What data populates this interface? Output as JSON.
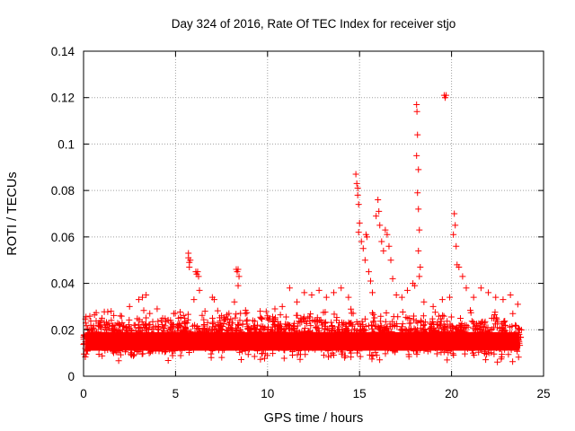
{
  "chart_data": {
    "type": "scatter",
    "title": "Day 324 of 2016, Rate Of TEC Index for receiver stjo",
    "xlabel": "GPS time / hours",
    "ylabel": "ROTI / TECUs",
    "xlim": [
      0,
      25
    ],
    "ylim": [
      0,
      0.14
    ],
    "x_ticks": [
      0,
      5,
      10,
      15,
      20,
      25
    ],
    "x_tick_labels": [
      "0",
      "5",
      "10",
      "15",
      "20",
      "25"
    ],
    "y_ticks": [
      0,
      0.02,
      0.04,
      0.06,
      0.08,
      0.1,
      0.12,
      0.14
    ],
    "y_tick_labels": [
      "0",
      "0.02",
      "0.04",
      "0.06",
      "0.08",
      "0.1",
      "0.12",
      "0.14"
    ],
    "grid": true,
    "marker": "+",
    "marker_color": "#ff0000",
    "baseline": {
      "x_range": [
        0,
        23.8
      ],
      "typical_range": [
        0.005,
        0.03
      ],
      "center": 0.015
    },
    "series": [
      {
        "points": [
          [
            0.1,
            0.012
          ],
          [
            0.3,
            0.02
          ],
          [
            0.5,
            0.018
          ],
          [
            0.8,
            0.022
          ],
          [
            1.0,
            0.025
          ],
          [
            1.2,
            0.014
          ],
          [
            1.5,
            0.028
          ],
          [
            1.8,
            0.02
          ],
          [
            2.0,
            0.026
          ],
          [
            2.3,
            0.018
          ],
          [
            2.5,
            0.03
          ],
          [
            2.8,
            0.022
          ],
          [
            3.0,
            0.033
          ],
          [
            3.2,
            0.034
          ],
          [
            3.4,
            0.035
          ],
          [
            3.6,
            0.027
          ],
          [
            3.8,
            0.021
          ],
          [
            4.0,
            0.029
          ],
          [
            4.3,
            0.025
          ],
          [
            4.6,
            0.024
          ],
          [
            4.9,
            0.027
          ],
          [
            5.2,
            0.022
          ],
          [
            5.5,
            0.025
          ],
          [
            5.7,
            0.053
          ],
          [
            5.7,
            0.051
          ],
          [
            5.75,
            0.049
          ],
          [
            5.8,
            0.05
          ],
          [
            5.75,
            0.047
          ],
          [
            6.0,
            0.033
          ],
          [
            6.1,
            0.045
          ],
          [
            6.15,
            0.044
          ],
          [
            6.2,
            0.045
          ],
          [
            6.25,
            0.043
          ],
          [
            6.3,
            0.037
          ],
          [
            6.6,
            0.028
          ],
          [
            7.0,
            0.034
          ],
          [
            7.1,
            0.033
          ],
          [
            7.5,
            0.026
          ],
          [
            7.9,
            0.027
          ],
          [
            8.2,
            0.032
          ],
          [
            8.3,
            0.046
          ],
          [
            8.35,
            0.045
          ],
          [
            8.4,
            0.046
          ],
          [
            8.45,
            0.043
          ],
          [
            8.4,
            0.039
          ],
          [
            8.8,
            0.027
          ],
          [
            9.2,
            0.024
          ],
          [
            9.6,
            0.028
          ],
          [
            10.0,
            0.026
          ],
          [
            10.4,
            0.029
          ],
          [
            10.8,
            0.03
          ],
          [
            11.2,
            0.038
          ],
          [
            11.6,
            0.032
          ],
          [
            12.0,
            0.036
          ],
          [
            12.4,
            0.035
          ],
          [
            12.8,
            0.037
          ],
          [
            13.2,
            0.034
          ],
          [
            13.6,
            0.036
          ],
          [
            14.0,
            0.038
          ],
          [
            14.4,
            0.034
          ],
          [
            14.8,
            0.087
          ],
          [
            14.85,
            0.083
          ],
          [
            14.9,
            0.081
          ],
          [
            14.9,
            0.078
          ],
          [
            14.95,
            0.074
          ],
          [
            15.0,
            0.066
          ],
          [
            14.95,
            0.062
          ],
          [
            15.1,
            0.058
          ],
          [
            15.2,
            0.055
          ],
          [
            15.3,
            0.05
          ],
          [
            15.35,
            0.061
          ],
          [
            15.4,
            0.06
          ],
          [
            15.5,
            0.045
          ],
          [
            15.6,
            0.041
          ],
          [
            15.7,
            0.036
          ],
          [
            15.9,
            0.069
          ],
          [
            16.0,
            0.076
          ],
          [
            16.05,
            0.071
          ],
          [
            16.1,
            0.065
          ],
          [
            16.2,
            0.058
          ],
          [
            16.3,
            0.054
          ],
          [
            16.4,
            0.063
          ],
          [
            16.5,
            0.061
          ],
          [
            16.6,
            0.056
          ],
          [
            16.7,
            0.05
          ],
          [
            16.8,
            0.042
          ],
          [
            17.0,
            0.035
          ],
          [
            17.3,
            0.034
          ],
          [
            17.6,
            0.037
          ],
          [
            17.9,
            0.04
          ],
          [
            18.0,
            0.039
          ],
          [
            18.1,
            0.117
          ],
          [
            18.12,
            0.114
          ],
          [
            18.15,
            0.104
          ],
          [
            18.1,
            0.095
          ],
          [
            18.2,
            0.089
          ],
          [
            18.15,
            0.079
          ],
          [
            18.2,
            0.072
          ],
          [
            18.25,
            0.063
          ],
          [
            18.2,
            0.054
          ],
          [
            18.3,
            0.047
          ],
          [
            18.25,
            0.043
          ],
          [
            18.5,
            0.032
          ],
          [
            19.0,
            0.03
          ],
          [
            19.5,
            0.033
          ],
          [
            19.6,
            0.121
          ],
          [
            19.65,
            0.12
          ],
          [
            19.7,
            0.121
          ],
          [
            19.9,
            0.034
          ],
          [
            20.1,
            0.061
          ],
          [
            20.15,
            0.07
          ],
          [
            20.2,
            0.065
          ],
          [
            20.25,
            0.056
          ],
          [
            20.3,
            0.048
          ],
          [
            20.4,
            0.047
          ],
          [
            20.6,
            0.043
          ],
          [
            20.8,
            0.038
          ],
          [
            21.2,
            0.034
          ],
          [
            21.6,
            0.038
          ],
          [
            22.0,
            0.036
          ],
          [
            22.4,
            0.034
          ],
          [
            22.8,
            0.033
          ],
          [
            23.2,
            0.035
          ],
          [
            23.6,
            0.031
          ]
        ]
      }
    ]
  }
}
